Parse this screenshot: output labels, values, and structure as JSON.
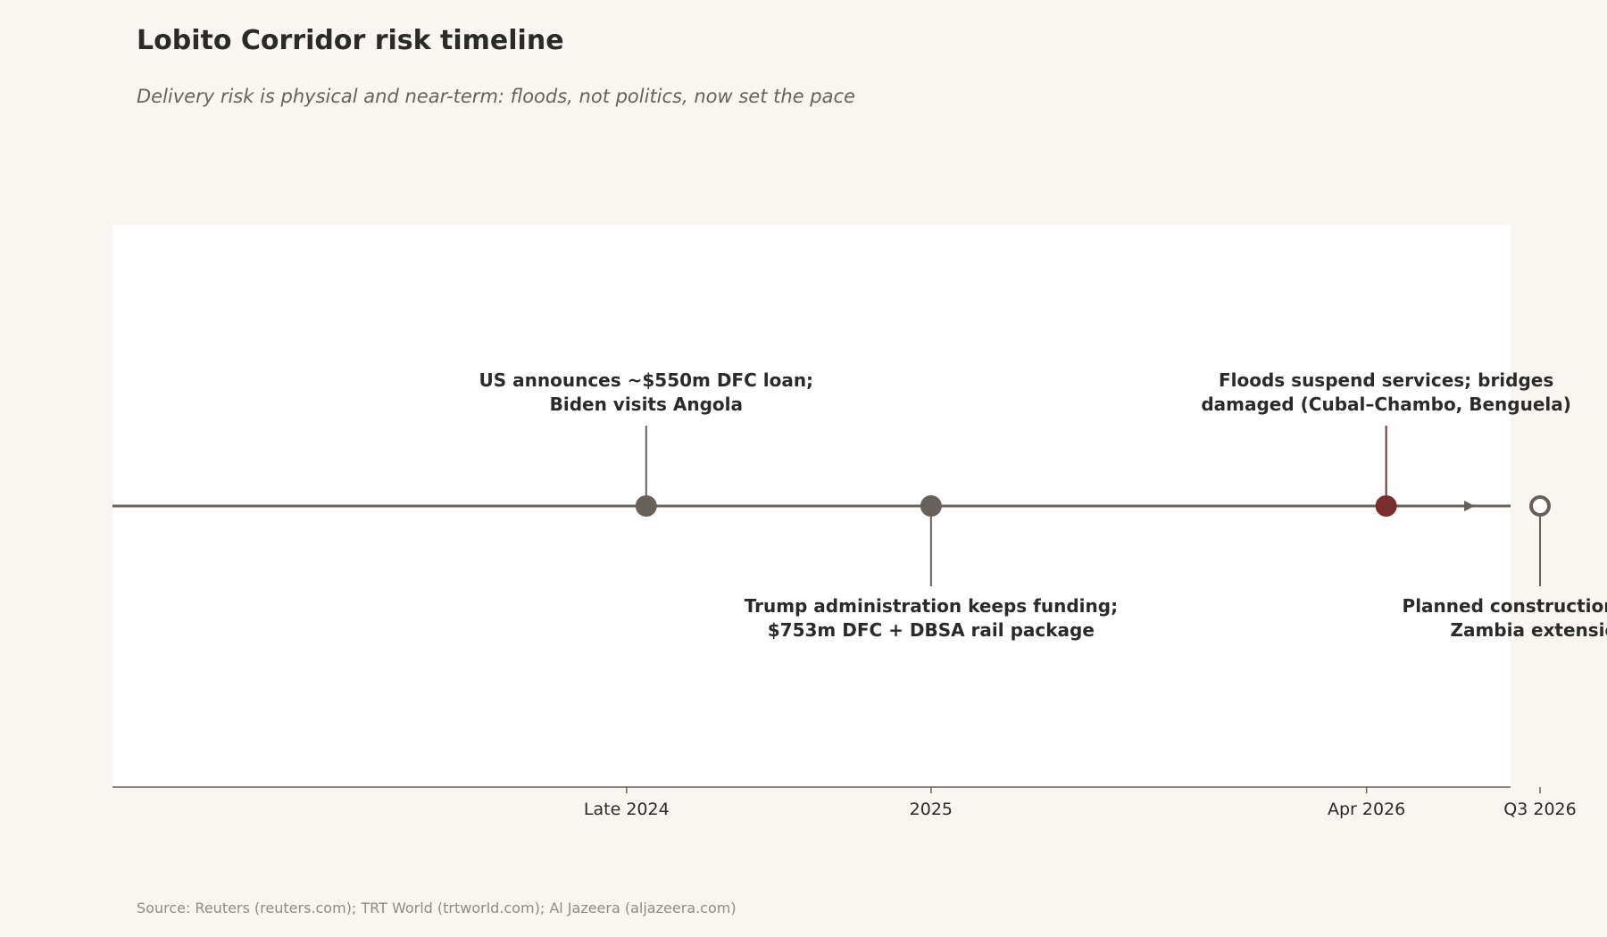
{
  "title": "Lobito Corridor risk timeline",
  "subtitle": "Delivery risk is physical and near-term: floods, not politics, now set the pace",
  "source": "Source: Reuters (reuters.com); TRT World (trtworld.com); Al Jazeera (aljazeera.com)",
  "colors": {
    "background": "#f9f6f1",
    "plot_background": "#ffffff",
    "axis": "#67615a",
    "event": "#67615a",
    "flood_event": "#7a2d2d",
    "text": "#2a2a28",
    "planned_fill": "#ffffff"
  },
  "chart_data": {
    "type": "timeline",
    "title": "Lobito Corridor risk timeline",
    "subtitle": "Delivery risk is physical and near-term: floods, not politics, now set the pace",
    "x_unit": "months since Jan 2024",
    "xlim": [
      -5.0,
      37.7
    ],
    "grid": false,
    "ticks": [
      {
        "label": "Late 2024",
        "value": 10.7
      },
      {
        "label": "2025",
        "value": 20.0
      },
      {
        "label": "Apr 2026",
        "value": 33.3
      },
      {
        "label": "Q3 2026",
        "value": 38.6
      }
    ],
    "events": [
      {
        "date": "Late 2024",
        "value": 11.3,
        "lines": [
          "US announces ~$550m DFC loan;",
          "Biden visits Angola"
        ],
        "side": "above",
        "marker": "filled",
        "color": "#67615a"
      },
      {
        "date": "2025",
        "value": 20.0,
        "lines": [
          "Trump administration keeps funding;",
          "$753m DFC + DBSA rail package"
        ],
        "side": "below",
        "marker": "filled",
        "color": "#67615a"
      },
      {
        "date": "Apr 2026",
        "value": 33.9,
        "lines": [
          "Floods suspend services; bridges",
          "damaged (Cubal–Chambo, Benguela)"
        ],
        "side": "above",
        "marker": "filled",
        "color": "#7a2d2d"
      },
      {
        "date": "Q3 2026",
        "value": 38.6,
        "lines": [
          "Planned construction start,",
          "Zambia extension"
        ],
        "side": "below",
        "marker": "open",
        "color": "#67615a"
      }
    ]
  }
}
